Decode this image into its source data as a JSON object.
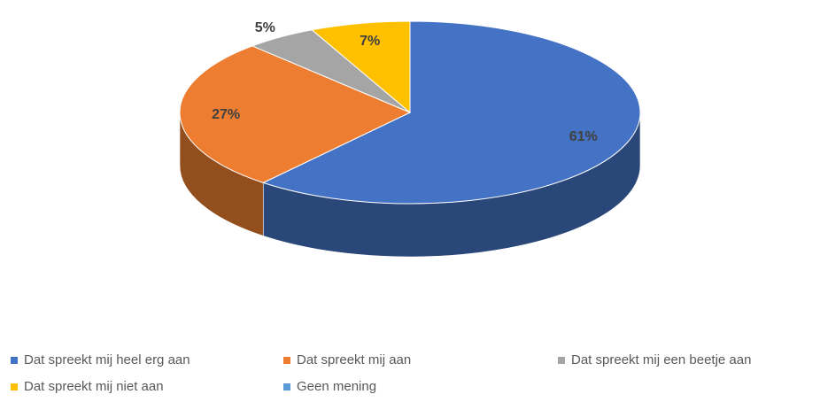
{
  "chart_data": {
    "type": "pie",
    "categories": [
      "Dat spreekt mij heel erg aan",
      "Dat spreekt mij aan",
      "Dat spreekt mij een beetje aan",
      "Dat spreekt mij niet aan",
      "Geen mening"
    ],
    "values": [
      61,
      27,
      5,
      7,
      0
    ],
    "value_labels": [
      "61%",
      "27%",
      "5%",
      "7%",
      null
    ],
    "colors": [
      "#4472c4",
      "#ed7d31",
      "#a5a5a5",
      "#ffc000",
      "#5b9bd5"
    ],
    "legend": "bottom"
  }
}
